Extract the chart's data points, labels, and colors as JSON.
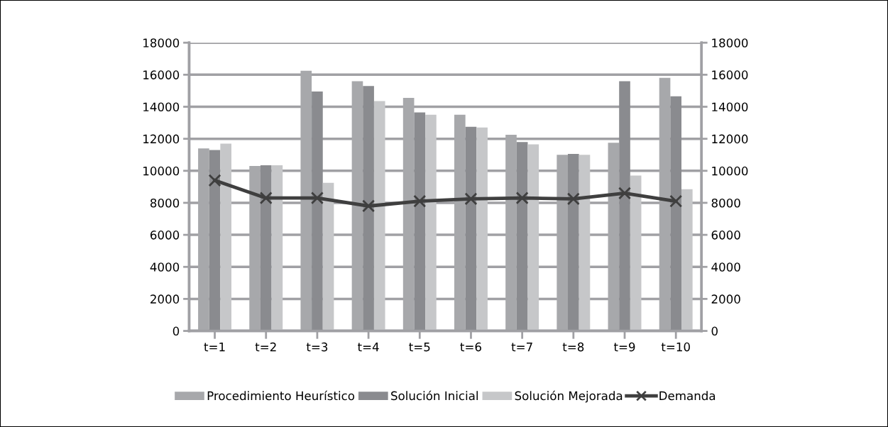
{
  "chart_data": {
    "type": "bar",
    "categories": [
      "t=1",
      "t=2",
      "t=3",
      "t=4",
      "t=5",
      "t=6",
      "t=7",
      "t=8",
      "t=9",
      "t=10"
    ],
    "series": [
      {
        "name": "Procedimiento Heurístico",
        "color": "#a7a8ab",
        "values": [
          11400,
          10300,
          16250,
          15600,
          14550,
          13500,
          12250,
          11000,
          11750,
          15800
        ]
      },
      {
        "name": "Solución Inicial",
        "color": "#8a8b8f",
        "values": [
          11300,
          10350,
          14950,
          15300,
          13650,
          12750,
          11800,
          11050,
          15600,
          14650
        ]
      },
      {
        "name": "Solución Mejorada",
        "color": "#c6c7c9",
        "values": [
          11700,
          10350,
          9250,
          14350,
          13500,
          12700,
          11650,
          11000,
          9700,
          8850
        ]
      },
      {
        "name": "Demanda",
        "color": "#3f3f3f",
        "type": "line",
        "marker": "cross",
        "values": [
          9400,
          8300,
          8300,
          7800,
          8100,
          8250,
          8300,
          8250,
          8600,
          8100
        ]
      }
    ],
    "ylim": [
      0,
      18000
    ],
    "yticks": [
      0,
      2000,
      4000,
      6000,
      8000,
      10000,
      12000,
      14000,
      16000,
      18000
    ],
    "y2lim": [
      0,
      18000
    ],
    "y2ticks": [
      0,
      2000,
      4000,
      6000,
      8000,
      10000,
      12000,
      14000,
      16000,
      18000
    ],
    "grid": "y",
    "legend": "bottom"
  }
}
